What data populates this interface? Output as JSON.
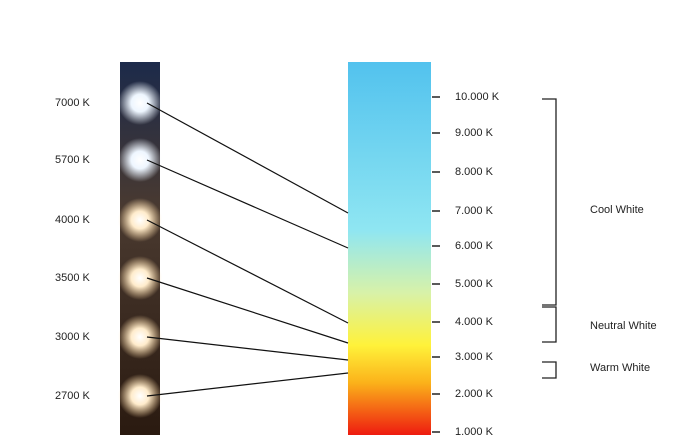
{
  "light_labels": [
    "7000 K",
    "5700 K",
    "4000 K",
    "3500 K",
    "3000 K",
    "2700 K"
  ],
  "scale_labels": [
    "10.000 K",
    "9.000 K",
    "8.000 K",
    "7.000 K",
    "6.000 K",
    "5.000 K",
    "4.000 K",
    "3.000 K",
    "2.000 K",
    "1.000 K"
  ],
  "ranges": [
    "Cool White",
    "Neutral White",
    "Warm White"
  ]
}
